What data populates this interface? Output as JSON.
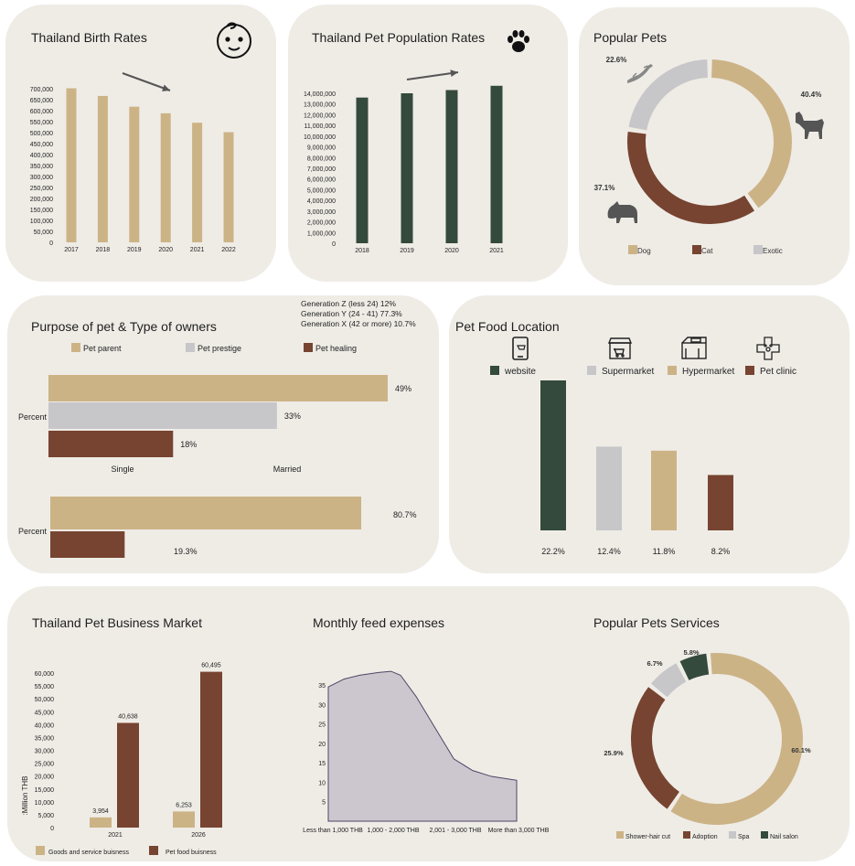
{
  "colors": {
    "tan": "#ccb386",
    "green": "#344a3c",
    "brown": "#774431",
    "grey": "#c7c6c9",
    "area": "#ccc7ce"
  },
  "icons": {
    "birth": "baby-face-icon",
    "pet_pop": "paw-icon",
    "website": "smartphone-icon",
    "supermarket": "supermarket-store-icon",
    "hypermarket": "mall-building-icon",
    "clinic": "vet-clinic-cross-icon",
    "dog": "dog-silhouette-icon",
    "cat": "cat-silhouette-icon",
    "exotic": "lizard-silhouette-icon"
  },
  "birth_rates": {
    "title": "Thailand Birth Rates"
  },
  "pet_population": {
    "title": "Thailand Pet Population Rates"
  },
  "popular_pets": {
    "title": "Popular Pets"
  },
  "purpose": {
    "title": "Purpose of pet & Type of owners",
    "generation_notes": [
      "Generation Z (less 24) 12%",
      "Generation Y (24 - 41) 77.3%",
      "Generation X (42 or more) 10.7%"
    ]
  },
  "pet_food_location": {
    "title": "Pet Food Location"
  },
  "business_market": {
    "title": "Thailand Pet Business Market"
  },
  "monthly_feed": {
    "title": "Monthly feed expenses"
  },
  "pet_services": {
    "title": "Popular Pets Services"
  },
  "chart_data": [
    {
      "id": "birth",
      "type": "bar",
      "title": "Thailand Birth Rates",
      "categories": [
        "2017",
        "2018",
        "2019",
        "2020",
        "2021",
        "2022"
      ],
      "values": [
        702000,
        667000,
        618000,
        588000,
        545000,
        502000
      ],
      "yticks": [
        "0",
        "50,000",
        "100,000",
        "150,000",
        "200,000",
        "250,000",
        "300,000",
        "350,000",
        "400,000",
        "450,000",
        "500,000",
        "550,000",
        "600,000",
        "650,000",
        "700,000"
      ],
      "ylim": [
        0,
        700000
      ],
      "trend": "down"
    },
    {
      "id": "petpop",
      "type": "bar",
      "title": "Thailand Pet Population Rates",
      "categories": [
        "2018",
        "2019",
        "2020",
        "2021"
      ],
      "values": [
        13600000,
        14000000,
        14300000,
        14700000
      ],
      "yticks": [
        "0",
        "1,000,000",
        "2,000,000",
        "3,000,000",
        "4,000,000",
        "5,000,000",
        "6,000,000",
        "7,000,000",
        "8,000,000",
        "9,000,000",
        "10,000,000",
        "11,000,000",
        "12,000,000",
        "13,000,000",
        "14,000,000"
      ],
      "ylim": [
        0,
        14000000
      ],
      "trend": "up"
    },
    {
      "id": "pets",
      "type": "pie",
      "title": "Popular Pets",
      "labels": [
        "Dog",
        "Cat",
        "Exotic"
      ],
      "values": [
        40.4,
        37.1,
        22.6
      ],
      "value_labels": [
        "40.4%",
        "37.1%",
        "22.6%"
      ],
      "legend": "bottom"
    },
    {
      "id": "purpose",
      "type": "bar",
      "title": "Purpose of pet & Type of owners",
      "orientation": "horizontal",
      "legend": [
        "Pet parent",
        "Pet prestige",
        "Pet healing"
      ],
      "groups": [
        {
          "label": "Percent",
          "values": [
            49,
            33,
            18
          ],
          "value_labels": [
            "49%",
            "33%",
            "18%"
          ]
        },
        {
          "label": "Percent",
          "values": [
            80.7,
            19.3
          ],
          "value_labels": [
            "80.7%",
            "19.3%"
          ]
        }
      ],
      "axis_labels": [
        "Single",
        "Married"
      ]
    },
    {
      "id": "food",
      "type": "bar",
      "title": "Pet Food Location",
      "categories": [
        "website",
        "Supermarket",
        "Hypermarket",
        "Pet clinic"
      ],
      "values": [
        22.2,
        12.4,
        11.8,
        8.2
      ],
      "value_labels": [
        "22.2%",
        "12.4%",
        "11.8%",
        "8.2%"
      ]
    },
    {
      "id": "market",
      "type": "bar",
      "title": "Thailand Pet Business Market",
      "categories": [
        "2021",
        "2026"
      ],
      "series": [
        {
          "name": "Goods and service buisness",
          "values": [
            3954,
            6253
          ],
          "value_labels": [
            "3,954",
            "6,253"
          ]
        },
        {
          "name": "Pet food buisness",
          "values": [
            40638,
            60495
          ],
          "value_labels": [
            "40,638",
            "60,495"
          ]
        }
      ],
      "ylabel": ":Million THB",
      "yticks": [
        "0",
        "5,000",
        "10,000",
        "15,000",
        "20,000",
        "25,000",
        "30,000",
        "35,000",
        "40,000",
        "45,000",
        "50,000",
        "55,000",
        "60,000"
      ],
      "ylim": [
        0,
        60000
      ],
      "legend": "bottom"
    },
    {
      "id": "feed",
      "type": "area",
      "title": "Monthly feed expenses",
      "categories": [
        "Less than 1,000 THB",
        "1,000 - 2,000 THB",
        "2,001 - 3,000 THB",
        "More than 3,000 THB"
      ],
      "yticks": [
        "5",
        "10",
        "15",
        "20",
        "25",
        "30",
        "35"
      ],
      "ylim": [
        0,
        38
      ]
    },
    {
      "id": "services",
      "type": "pie",
      "title": "Popular Pets Services",
      "labels": [
        "Shower-hair cut",
        "Adoption",
        "Spa",
        "Nail salon"
      ],
      "values": [
        60.1,
        25.9,
        6.7,
        5.8
      ],
      "value_labels": [
        "60.1%",
        "25.9%",
        "6.7%",
        "5.8%"
      ],
      "legend": "bottom"
    }
  ]
}
